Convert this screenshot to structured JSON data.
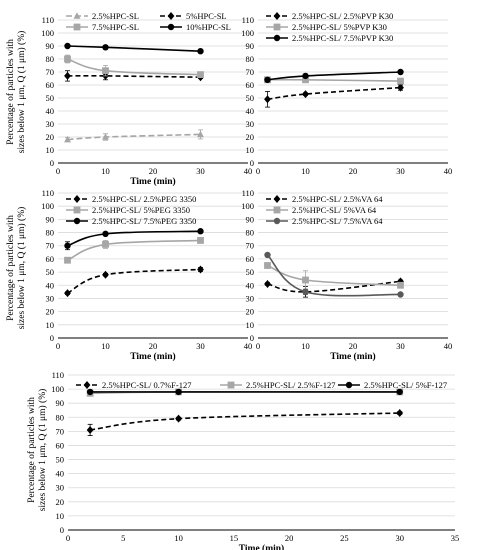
{
  "shared": {
    "ylabel_line1": "Percentage of particles with",
    "ylabel_line2": "sizes below 1 μm, Q (1 μm) (%)",
    "colors": {
      "black": "#000000",
      "gray": "#a6a6a6",
      "darkgray": "#595959"
    }
  },
  "chart_data": [
    {
      "type": "line",
      "xlabel": "Time (min)",
      "ylabel": "Percentage of particles with sizes below 1 μm, Q (1 μm) (%)",
      "xlim": [
        0,
        40
      ],
      "ylim": [
        0,
        110
      ],
      "xticks": [
        0,
        10,
        20,
        30,
        40
      ],
      "yticks": [
        0,
        10,
        20,
        30,
        40,
        50,
        60,
        70,
        80,
        90,
        100,
        110
      ],
      "legend": "top",
      "series": [
        {
          "name": "2.5%HPC-SL",
          "x": [
            2,
            10,
            30
          ],
          "y": [
            18,
            20,
            22
          ],
          "err": [
            1.5,
            2.5,
            3.5
          ],
          "color": "#a6a6a6",
          "dash": "6,3",
          "marker": "triangle"
        },
        {
          "name": "5%HPC-SL",
          "x": [
            2,
            10,
            30
          ],
          "y": [
            67,
            67,
            66
          ],
          "err": [
            4,
            3,
            1
          ],
          "color": "#000000",
          "dash": "5,3",
          "marker": "diamond"
        },
        {
          "name": "7.5%HPC-SL",
          "x": [
            2,
            10,
            30
          ],
          "y": [
            80,
            71,
            68
          ],
          "err": [
            3,
            4,
            1
          ],
          "color": "#a6a6a6",
          "dash": "",
          "marker": "square"
        },
        {
          "name": "10%HPC-SL",
          "x": [
            2,
            10,
            30
          ],
          "y": [
            90,
            89,
            86
          ],
          "err": [
            1,
            1,
            0.5
          ],
          "color": "#000000",
          "dash": "",
          "marker": "circle"
        }
      ]
    },
    {
      "type": "line",
      "xlabel": "",
      "ylabel": "",
      "xlim": [
        0,
        40
      ],
      "ylim": [
        0,
        110
      ],
      "xticks": [
        0,
        10,
        20,
        30,
        40
      ],
      "yticks": [
        0,
        10,
        20,
        30,
        40,
        50,
        60,
        70,
        80,
        90,
        100,
        110
      ],
      "legend": "top",
      "series": [
        {
          "name": "2.5%HPC-SL/ 2.5%PVP K30",
          "x": [
            2,
            10,
            30
          ],
          "y": [
            49,
            53,
            58
          ],
          "err": [
            6,
            1,
            2
          ],
          "color": "#000000",
          "dash": "5,3",
          "marker": "diamond"
        },
        {
          "name": "2.5%HPC-SL/ 5%PVP K30",
          "x": [
            2,
            10,
            30
          ],
          "y": [
            64,
            64,
            63
          ],
          "err": [
            1,
            1,
            1
          ],
          "color": "#a6a6a6",
          "dash": "",
          "marker": "square"
        },
        {
          "name": "2.5%HPC-SL/ 7.5%PVP K30",
          "x": [
            2,
            10,
            30
          ],
          "y": [
            64,
            67,
            70
          ],
          "err": [
            1,
            1,
            1
          ],
          "color": "#000000",
          "dash": "",
          "marker": "circle"
        }
      ]
    },
    {
      "type": "line",
      "xlabel": "Time (min)",
      "ylabel": "Percentage of particles with sizes below 1 μm, Q (1 μm) (%)",
      "xlim": [
        0,
        40
      ],
      "ylim": [
        0,
        110
      ],
      "xticks": [
        0,
        10,
        20,
        30,
        40
      ],
      "yticks": [
        0,
        10,
        20,
        30,
        40,
        50,
        60,
        70,
        80,
        90,
        100,
        110
      ],
      "legend": "top",
      "series": [
        {
          "name": "2.5%HPC-SL/ 2.5%PEG 3350",
          "x": [
            2,
            10,
            30
          ],
          "y": [
            34,
            48,
            52
          ],
          "err": [
            1,
            1,
            1.5
          ],
          "color": "#000000",
          "dash": "5,3",
          "marker": "diamond"
        },
        {
          "name": "2.5%HPC-SL/ 5%PEG 3350",
          "x": [
            2,
            10,
            30
          ],
          "y": [
            59,
            71,
            74
          ],
          "err": [
            1.5,
            3,
            1
          ],
          "color": "#a6a6a6",
          "dash": "",
          "marker": "square"
        },
        {
          "name": "2.5%HPC-SL/ 7.5%PEG 3350",
          "x": [
            2,
            10,
            30
          ],
          "y": [
            70,
            79,
            81
          ],
          "err": [
            3,
            1,
            1
          ],
          "color": "#000000",
          "dash": "",
          "marker": "circle"
        }
      ]
    },
    {
      "type": "line",
      "xlabel": "Time (min)",
      "ylabel": "",
      "xlim": [
        0,
        40
      ],
      "ylim": [
        0,
        110
      ],
      "xticks": [
        0,
        10,
        20,
        30,
        40
      ],
      "yticks": [
        0,
        10,
        20,
        30,
        40,
        50,
        60,
        70,
        80,
        90,
        100,
        110
      ],
      "legend": "top",
      "series": [
        {
          "name": "2.5%HPC-SL/ 2.5%VA 64",
          "x": [
            2,
            10,
            30
          ],
          "y": [
            41,
            35,
            43
          ],
          "err": [
            1,
            4,
            1
          ],
          "color": "#000000",
          "dash": "5,3",
          "marker": "diamond"
        },
        {
          "name": "2.5%HPC-SL/ 5%VA 64",
          "x": [
            2,
            10,
            30
          ],
          "y": [
            55,
            44,
            40
          ],
          "err": [
            1,
            7,
            1.5
          ],
          "color": "#a6a6a6",
          "dash": "",
          "marker": "square"
        },
        {
          "name": "2.5%HPC-SL/ 7.5%VA 64",
          "x": [
            2,
            10,
            30
          ],
          "y": [
            63,
            35,
            33
          ],
          "err": [
            1,
            2,
            1
          ],
          "color": "#595959",
          "dash": "",
          "marker": "circle"
        }
      ]
    },
    {
      "type": "line",
      "xlabel": "Time (min)",
      "ylabel": "Percentage of particles with sizes below 1 μm, Q (1 μm) (%)",
      "xlim": [
        0,
        35
      ],
      "ylim": [
        0,
        110
      ],
      "xticks": [
        0,
        5,
        10,
        15,
        20,
        25,
        30,
        35
      ],
      "yticks": [
        0,
        10,
        20,
        30,
        40,
        50,
        60,
        70,
        80,
        90,
        100,
        110
      ],
      "legend": "top",
      "series": [
        {
          "name": "2.5%HPC-SL/ 0.7%F-127",
          "x": [
            2,
            10,
            30
          ],
          "y": [
            71,
            79,
            83
          ],
          "err": [
            4,
            1,
            1
          ],
          "color": "#000000",
          "dash": "5,3",
          "marker": "diamond"
        },
        {
          "name": "2.5%HPC-SL/ 2.5%F-127",
          "x": [
            2,
            10,
            30
          ],
          "y": [
            97,
            98,
            98
          ],
          "err": [
            0.5,
            0.5,
            0.5
          ],
          "color": "#a6a6a6",
          "dash": "",
          "marker": "square"
        },
        {
          "name": "2.5%HPC-SL/ 5%F-127",
          "x": [
            2,
            10,
            30
          ],
          "y": [
            98,
            98,
            98
          ],
          "err": [
            0.5,
            0.5,
            0.5
          ],
          "color": "#000000",
          "dash": "",
          "marker": "circle"
        }
      ]
    }
  ]
}
